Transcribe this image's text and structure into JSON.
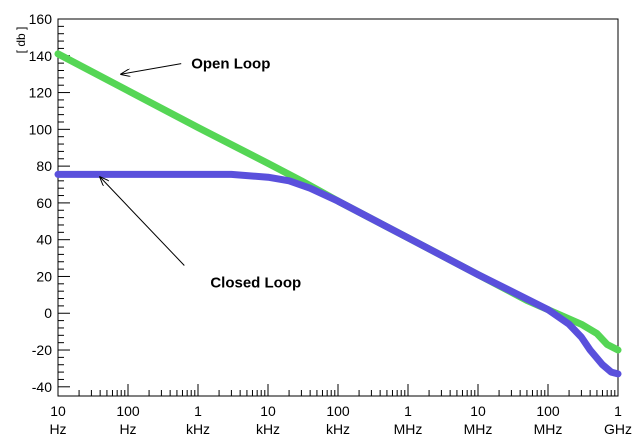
{
  "chart_data": {
    "type": "line",
    "ylabel": "[ db ]",
    "ylim": [
      -45,
      160
    ],
    "xscale": "log",
    "xlim_hz": [
      10,
      1000000000
    ],
    "grid": false,
    "x_ticks": [
      {
        "value": 10,
        "num": "10",
        "unit": "Hz"
      },
      {
        "value": 100,
        "num": "100",
        "unit": "Hz"
      },
      {
        "value": 1000,
        "num": "1",
        "unit": "kHz"
      },
      {
        "value": 10000,
        "num": "10",
        "unit": "kHz"
      },
      {
        "value": 100000,
        "num": "100",
        "unit": "kHz"
      },
      {
        "value": 1000000,
        "num": "1",
        "unit": "MHz"
      },
      {
        "value": 10000000,
        "num": "10",
        "unit": "MHz"
      },
      {
        "value": 100000000,
        "num": "100",
        "unit": "MHz"
      },
      {
        "value": 1000000000,
        "num": "1",
        "unit": "GHz"
      }
    ],
    "y_ticks": [
      -40,
      -20,
      0,
      20,
      40,
      60,
      80,
      100,
      120,
      140,
      160
    ],
    "series": [
      {
        "name": "Open Loop",
        "color": "#55d655",
        "points": [
          [
            10,
            141
          ],
          [
            100,
            121
          ],
          [
            1000,
            101
          ],
          [
            10000,
            81.5
          ],
          [
            30000,
            72
          ],
          [
            100000,
            61
          ],
          [
            1000000,
            41
          ],
          [
            10000000,
            21
          ],
          [
            50000000,
            7
          ],
          [
            150000000,
            -1
          ],
          [
            300000000,
            -6
          ],
          [
            500000000,
            -11
          ],
          [
            700000000,
            -17
          ],
          [
            1000000000,
            -20
          ]
        ]
      },
      {
        "name": "Closed Loop",
        "color": "#5a50dc",
        "points": [
          [
            10,
            75.5
          ],
          [
            1000,
            75.5
          ],
          [
            3000,
            75.5
          ],
          [
            10000,
            74
          ],
          [
            20000,
            72
          ],
          [
            40000,
            68
          ],
          [
            100000,
            61
          ],
          [
            1000000,
            41
          ],
          [
            10000000,
            21
          ],
          [
            100000000,
            2
          ],
          [
            200000000,
            -6
          ],
          [
            300000000,
            -13
          ],
          [
            400000000,
            -20
          ],
          [
            600000000,
            -28
          ],
          [
            800000000,
            -32
          ],
          [
            1000000000,
            -33
          ]
        ]
      }
    ],
    "annotations": [
      {
        "text": "Open Loop",
        "target": [
          80,
          130
        ],
        "label_at": [
          800,
          133
        ]
      },
      {
        "text": "Closed Loop",
        "target": [
          40,
          74
        ],
        "label_at": [
          1500,
          14
        ]
      }
    ]
  }
}
